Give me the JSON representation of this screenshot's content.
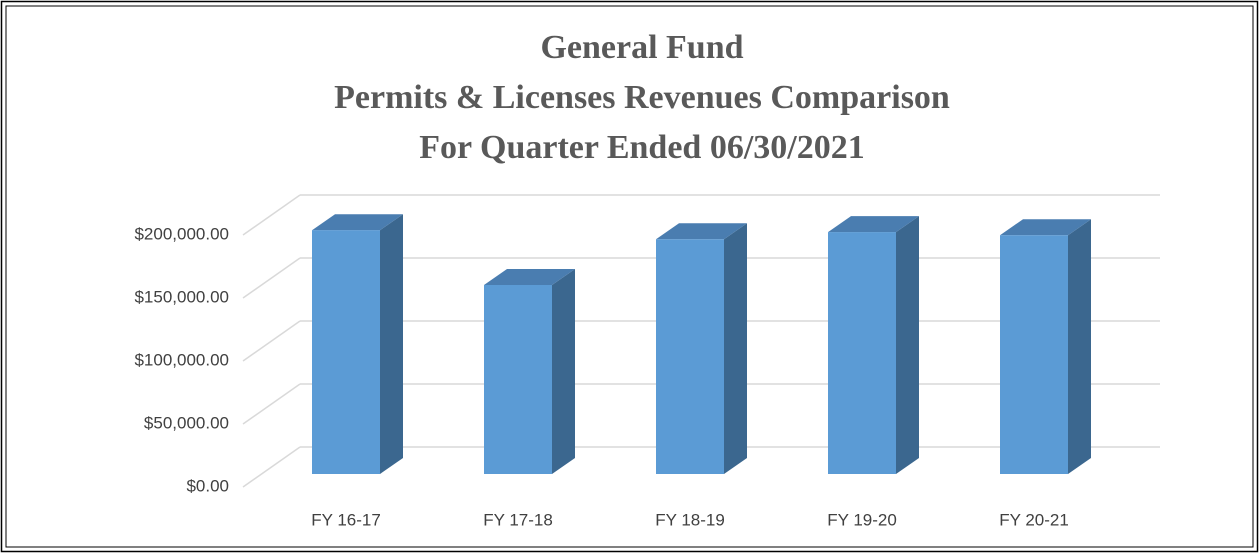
{
  "chart_data": {
    "type": "bar3d",
    "title": [
      "General Fund",
      "Permits & Licenses Revenues Comparison",
      "For Quarter Ended 06/30/2021"
    ],
    "categories": [
      "FY 16-17",
      "FY 17-18",
      "FY 18-19",
      "FY 19-20",
      "FY 20-21"
    ],
    "values": [
      193500,
      150000,
      186300,
      192000,
      189500
    ],
    "color": "#5b9bd5",
    "ylim": [
      0,
      200000
    ],
    "yticks": [
      {
        "value": 0,
        "label": "$0.00"
      },
      {
        "value": 50000,
        "label": "$50,000.00"
      },
      {
        "value": 100000,
        "label": "$100,000.00"
      },
      {
        "value": 150000,
        "label": "$150,000.00"
      },
      {
        "value": 200000,
        "label": "$200,000.00"
      }
    ],
    "grid": true
  }
}
